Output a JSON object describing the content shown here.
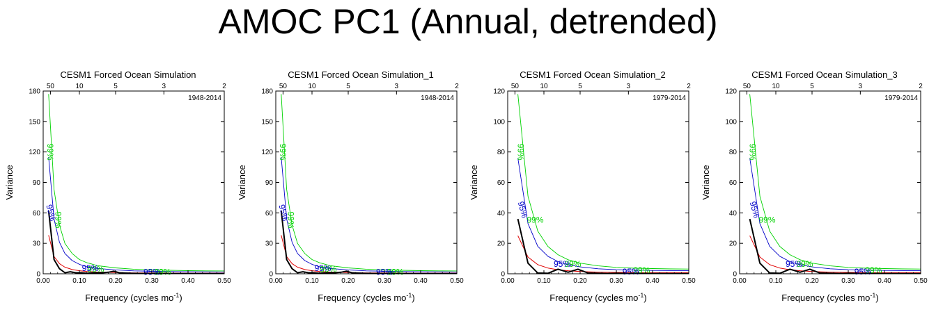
{
  "title": "AMOC PC1 (Annual, detrended)",
  "colors": {
    "spectrum": "#000000",
    "red_noise": "#e00000",
    "c95": "#0000c8",
    "c99": "#00d200"
  },
  "chart_data": [
    {
      "type": "line",
      "title": "CESM1 Forced Ocean Simulation",
      "period_label": "1948-2014",
      "xlabel": "Frequency (cycles mo",
      "xlabel_sup": "-1",
      "xlabel_end": ")",
      "ylabel": "Variance",
      "xlim": [
        0,
        0.5
      ],
      "ylim": [
        0,
        180
      ],
      "x_ticks": [
        "0.00",
        "0.10",
        "0.20",
        "0.30",
        "0.40",
        "0.50"
      ],
      "y_ticks": [
        "0",
        "30",
        "60",
        "90",
        "120",
        "150",
        "180"
      ],
      "top_axis": {
        "labels": [
          "50",
          "10",
          "5",
          "3",
          "2"
        ],
        "periods": [
          50,
          10,
          5,
          3,
          2
        ]
      },
      "label_95": "95%",
      "label_99": "99%",
      "series": [
        {
          "name": "spectrum",
          "x": [
            0.015,
            0.03,
            0.045,
            0.06,
            0.075,
            0.09,
            0.105,
            0.12,
            0.135,
            0.15,
            0.165,
            0.18,
            0.195,
            0.21,
            0.24,
            0.27,
            0.3,
            0.35,
            0.4,
            0.45,
            0.5
          ],
          "values": [
            62,
            14,
            5,
            1,
            2,
            1,
            1,
            0.5,
            0.8,
            1,
            1,
            1.5,
            2.5,
            1,
            0.5,
            0.3,
            0.3,
            0.2,
            0.2,
            0.1,
            0.1
          ]
        },
        {
          "name": "red_noise",
          "x": [
            0.015,
            0.03,
            0.045,
            0.06,
            0.08,
            0.1,
            0.12,
            0.15,
            0.2,
            0.25,
            0.3,
            0.35,
            0.4,
            0.45,
            0.5
          ],
          "values": [
            38,
            17,
            10,
            6.5,
            4.2,
            3,
            2.3,
            1.7,
            1.2,
            0.9,
            0.8,
            0.7,
            0.6,
            0.6,
            0.6
          ]
        },
        {
          "name": "95%",
          "x": [
            0.015,
            0.03,
            0.045,
            0.06,
            0.08,
            0.1,
            0.12,
            0.15,
            0.2,
            0.25,
            0.3,
            0.35,
            0.4,
            0.45,
            0.5
          ],
          "values": [
            115,
            54,
            31,
            20,
            13,
            9.3,
            7,
            5.3,
            3.8,
            2.9,
            2.5,
            2.2,
            2,
            1.9,
            1.8
          ]
        },
        {
          "name": "99%",
          "x": [
            0.015,
            0.03,
            0.045,
            0.06,
            0.08,
            0.1,
            0.12,
            0.15,
            0.2,
            0.25,
            0.3,
            0.35,
            0.4,
            0.45,
            0.5
          ],
          "values": [
            177,
            83,
            48,
            30,
            20,
            14,
            11,
            8,
            5.8,
            4.5,
            3.8,
            3.4,
            3.1,
            2.9,
            2.8
          ]
        }
      ],
      "label_pos_99": [
        [
          0.018,
          120
        ],
        [
          0.04,
          53
        ],
        [
          0.145,
          4
        ],
        [
          0.33,
          1
        ]
      ],
      "label_pos_95": [
        [
          0.02,
          60
        ],
        [
          0.13,
          5
        ],
        [
          0.3,
          1
        ]
      ]
    },
    {
      "type": "line",
      "title": "CESM1 Forced Ocean Simulation_1",
      "period_label": "1948-2014",
      "xlabel": "Frequency (cycles mo",
      "xlabel_sup": "-1",
      "xlabel_end": ")",
      "ylabel": "Variance",
      "xlim": [
        0,
        0.5
      ],
      "ylim": [
        0,
        180
      ],
      "x_ticks": [
        "0.00",
        "0.10",
        "0.20",
        "0.30",
        "0.40",
        "0.50"
      ],
      "y_ticks": [
        "0",
        "30",
        "60",
        "90",
        "120",
        "150",
        "180"
      ],
      "top_axis": {
        "labels": [
          "50",
          "10",
          "5",
          "3",
          "2"
        ],
        "periods": [
          50,
          10,
          5,
          3,
          2
        ]
      },
      "label_95": "95%",
      "label_99": "99%",
      "series": [
        {
          "name": "spectrum",
          "x": [
            0.015,
            0.03,
            0.045,
            0.06,
            0.075,
            0.09,
            0.105,
            0.12,
            0.135,
            0.15,
            0.165,
            0.18,
            0.195,
            0.21,
            0.24,
            0.27,
            0.3,
            0.35,
            0.4,
            0.45,
            0.5
          ],
          "values": [
            62,
            14,
            5,
            1,
            2,
            1,
            1,
            0.5,
            0.8,
            1,
            1,
            1.5,
            2.5,
            1,
            0.5,
            0.3,
            0.3,
            0.2,
            0.2,
            0.1,
            0.1
          ]
        },
        {
          "name": "red_noise",
          "x": [
            0.015,
            0.03,
            0.045,
            0.06,
            0.08,
            0.1,
            0.12,
            0.15,
            0.2,
            0.25,
            0.3,
            0.35,
            0.4,
            0.45,
            0.5
          ],
          "values": [
            38,
            17,
            10,
            6.5,
            4.2,
            3,
            2.3,
            1.7,
            1.2,
            0.9,
            0.8,
            0.7,
            0.6,
            0.6,
            0.6
          ]
        },
        {
          "name": "95%",
          "x": [
            0.015,
            0.03,
            0.045,
            0.06,
            0.08,
            0.1,
            0.12,
            0.15,
            0.2,
            0.25,
            0.3,
            0.35,
            0.4,
            0.45,
            0.5
          ],
          "values": [
            115,
            54,
            31,
            20,
            13,
            9.3,
            7,
            5.3,
            3.8,
            2.9,
            2.5,
            2.2,
            2,
            1.9,
            1.8
          ]
        },
        {
          "name": "99%",
          "x": [
            0.015,
            0.03,
            0.045,
            0.06,
            0.08,
            0.1,
            0.12,
            0.15,
            0.2,
            0.25,
            0.3,
            0.35,
            0.4,
            0.45,
            0.5
          ],
          "values": [
            177,
            83,
            48,
            30,
            20,
            14,
            11,
            8,
            5.8,
            4.5,
            3.8,
            3.4,
            3.1,
            2.9,
            2.8
          ]
        }
      ],
      "label_pos_99": [
        [
          0.018,
          120
        ],
        [
          0.04,
          53
        ],
        [
          0.145,
          4
        ],
        [
          0.33,
          1
        ]
      ],
      "label_pos_95": [
        [
          0.02,
          60
        ],
        [
          0.13,
          5
        ],
        [
          0.3,
          1
        ]
      ]
    },
    {
      "type": "line",
      "title": "CESM1 Forced Ocean Simulation_2",
      "period_label": "1979-2014",
      "xlabel": "Frequency (cycles mo",
      "xlabel_sup": "-1",
      "xlabel_end": ")",
      "ylabel": "Variance",
      "xlim": [
        0,
        0.5
      ],
      "ylim": [
        0,
        120
      ],
      "x_ticks": [
        "0.00",
        "0.10",
        "0.20",
        "0.30",
        "0.40",
        "0.50"
      ],
      "y_ticks": [
        "0",
        "20",
        "40",
        "60",
        "80",
        "100",
        "120"
      ],
      "top_axis": {
        "labels": [
          "50",
          "10",
          "5",
          "3",
          "2"
        ],
        "periods": [
          50,
          10,
          5,
          3,
          2
        ]
      },
      "label_95": "95%",
      "label_99": "99%",
      "series": [
        {
          "name": "spectrum",
          "x": [
            0.028,
            0.056,
            0.083,
            0.111,
            0.139,
            0.167,
            0.194,
            0.222,
            0.25,
            0.278,
            0.306,
            0.333,
            0.361,
            0.389,
            0.417,
            0.444,
            0.472,
            0.5
          ],
          "values": [
            36,
            7,
            0.5,
            0.3,
            3,
            1,
            3,
            0.5,
            0.3,
            0.2,
            0.3,
            0.2,
            0.2,
            0.1,
            0.2,
            0.1,
            0.1,
            0.1
          ]
        },
        {
          "name": "red_noise",
          "x": [
            0.028,
            0.056,
            0.083,
            0.111,
            0.139,
            0.167,
            0.2,
            0.25,
            0.3,
            0.35,
            0.4,
            0.45,
            0.5
          ],
          "values": [
            25,
            11,
            6,
            3.8,
            2.6,
            2,
            1.5,
            1.1,
            0.9,
            0.8,
            0.7,
            0.7,
            0.7
          ]
        },
        {
          "name": "95%",
          "x": [
            0.028,
            0.056,
            0.083,
            0.111,
            0.139,
            0.167,
            0.2,
            0.25,
            0.3,
            0.35,
            0.4,
            0.45,
            0.5
          ],
          "values": [
            76,
            33,
            18,
            11.5,
            8,
            6,
            4.5,
            3.3,
            2.7,
            2.4,
            2.2,
            2.1,
            2
          ]
        },
        {
          "name": "99%",
          "x": [
            0.028,
            0.056,
            0.083,
            0.111,
            0.139,
            0.167,
            0.2,
            0.25,
            0.3,
            0.35,
            0.4,
            0.45,
            0.5
          ],
          "values": [
            118,
            51,
            28,
            18,
            12.5,
            9.2,
            7,
            5.2,
            4.2,
            3.7,
            3.4,
            3.2,
            3.1
          ]
        }
      ],
      "label_pos_99": [
        [
          0.034,
          80
        ],
        [
          0.076,
          35
        ],
        [
          0.18,
          6
        ],
        [
          0.37,
          2
        ]
      ],
      "label_pos_95": [
        [
          0.04,
          42
        ],
        [
          0.15,
          6
        ],
        [
          0.34,
          1
        ]
      ]
    },
    {
      "type": "line",
      "title": "CESM1 Forced Ocean Simulation_3",
      "period_label": "1979-2014",
      "xlabel": "Frequency (cycles mo",
      "xlabel_sup": "-1",
      "xlabel_end": ")",
      "ylabel": "Variance",
      "xlim": [
        0,
        0.5
      ],
      "ylim": [
        0,
        120
      ],
      "x_ticks": [
        "0.00",
        "0.10",
        "0.20",
        "0.30",
        "0.40",
        "0.50"
      ],
      "y_ticks": [
        "0",
        "20",
        "40",
        "60",
        "80",
        "100",
        "120"
      ],
      "top_axis": {
        "labels": [
          "50",
          "10",
          "5",
          "3",
          "2"
        ],
        "periods": [
          50,
          10,
          5,
          3,
          2
        ]
      },
      "label_95": "95%",
      "label_99": "99%",
      "series": [
        {
          "name": "spectrum",
          "x": [
            0.028,
            0.056,
            0.083,
            0.111,
            0.139,
            0.167,
            0.194,
            0.222,
            0.25,
            0.278,
            0.306,
            0.333,
            0.361,
            0.389,
            0.417,
            0.444,
            0.472,
            0.5
          ],
          "values": [
            36,
            7,
            0.5,
            0.3,
            3,
            1,
            3,
            0.5,
            0.3,
            0.2,
            0.3,
            0.2,
            0.2,
            0.1,
            0.2,
            0.1,
            0.1,
            0.1
          ]
        },
        {
          "name": "red_noise",
          "x": [
            0.028,
            0.056,
            0.083,
            0.111,
            0.139,
            0.167,
            0.2,
            0.25,
            0.3,
            0.35,
            0.4,
            0.45,
            0.5
          ],
          "values": [
            25,
            11,
            6,
            3.8,
            2.6,
            2,
            1.5,
            1.1,
            0.9,
            0.8,
            0.7,
            0.7,
            0.7
          ]
        },
        {
          "name": "95%",
          "x": [
            0.028,
            0.056,
            0.083,
            0.111,
            0.139,
            0.167,
            0.2,
            0.25,
            0.3,
            0.35,
            0.4,
            0.45,
            0.5
          ],
          "values": [
            76,
            33,
            18,
            11.5,
            8,
            6,
            4.5,
            3.3,
            2.7,
            2.4,
            2.2,
            2.1,
            2
          ]
        },
        {
          "name": "99%",
          "x": [
            0.028,
            0.056,
            0.083,
            0.111,
            0.139,
            0.167,
            0.2,
            0.25,
            0.3,
            0.35,
            0.4,
            0.45,
            0.5
          ],
          "values": [
            118,
            51,
            28,
            18,
            12.5,
            9.2,
            7,
            5.2,
            4.2,
            3.7,
            3.4,
            3.2,
            3.1
          ]
        }
      ],
      "label_pos_99": [
        [
          0.034,
          80
        ],
        [
          0.076,
          35
        ],
        [
          0.18,
          6
        ],
        [
          0.37,
          2
        ]
      ],
      "label_pos_95": [
        [
          0.04,
          42
        ],
        [
          0.15,
          6
        ],
        [
          0.34,
          1
        ]
      ]
    }
  ]
}
